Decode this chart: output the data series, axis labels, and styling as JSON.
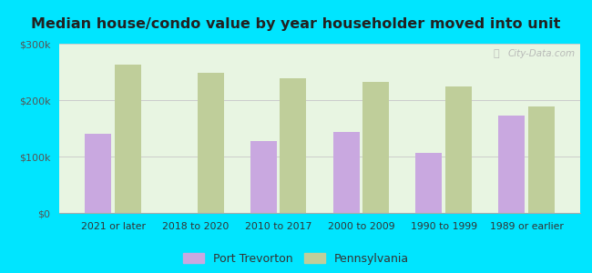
{
  "title": "Median house/condo value by year householder moved into unit",
  "categories": [
    "2021 or later",
    "2018 to 2020",
    "2010 to 2017",
    "2000 to 2009",
    "1990 to 1999",
    "1989 or earlier"
  ],
  "port_trevorton": [
    140000,
    0,
    128000,
    143000,
    107000,
    172000
  ],
  "pennsylvania": [
    263000,
    248000,
    238000,
    232000,
    225000,
    188000
  ],
  "bar_color_port": "#c9a8e0",
  "bar_color_pa": "#bfce9a",
  "background_outer": "#00e5ff",
  "background_inner": "#e8f5e2",
  "ylim": [
    0,
    300000
  ],
  "yticks": [
    0,
    100000,
    200000,
    300000
  ],
  "ytick_labels": [
    "$0",
    "$100k",
    "$200k",
    "$300k"
  ],
  "legend_port": "Port Trevorton",
  "legend_pa": "Pennsylvania",
  "watermark": "City-Data.com"
}
